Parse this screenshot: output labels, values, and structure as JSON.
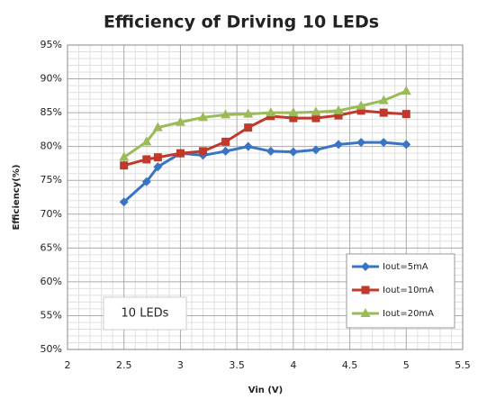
{
  "chart_data": {
    "type": "line",
    "title": "Efficiency of Driving 10 LEDs",
    "x_label": "Vin (V)",
    "y_label": "Efficiency(%)",
    "annotation": "10 LEDs",
    "x": [
      2.5,
      2.7,
      2.8,
      3.0,
      3.2,
      3.4,
      3.6,
      3.8,
      4.0,
      4.2,
      4.4,
      4.6,
      4.8,
      5.0
    ],
    "series": [
      {
        "name": "Iout=5mA",
        "color": "#3a74c4",
        "marker": "diamond",
        "values": [
          71.8,
          74.8,
          77,
          79,
          78.7,
          79.3,
          80,
          79.3,
          79.2,
          79.5,
          80.3,
          80.6,
          80.6,
          80.3
        ]
      },
      {
        "name": "Iout=10mA",
        "color": "#c0392b",
        "marker": "square",
        "values": [
          77.2,
          78.1,
          78.4,
          79,
          79.3,
          80.7,
          82.8,
          84.5,
          84.2,
          84.2,
          84.6,
          85.3,
          85,
          84.8
        ]
      },
      {
        "name": "Iout=20mA",
        "color": "#9bbb59",
        "marker": "triangle",
        "values": [
          78.4,
          80.7,
          82.8,
          83.6,
          84.3,
          84.7,
          84.8,
          85,
          85,
          85.1,
          85.3,
          86,
          86.8,
          88.2
        ]
      }
    ],
    "xlim": [
      2,
      5.5
    ],
    "xticks": [
      2,
      2.5,
      3,
      3.5,
      4,
      4.5,
      5,
      5.5
    ],
    "ylim": [
      50,
      95
    ],
    "yticks": [
      {
        "value": 50,
        "label": "50%"
      },
      {
        "value": 55,
        "label": "55%"
      },
      {
        "value": 60,
        "label": "60%"
      },
      {
        "value": 65,
        "label": "65%"
      },
      {
        "value": 70,
        "label": "70%"
      },
      {
        "value": 75,
        "label": "75%"
      },
      {
        "value": 80,
        "label": "80%"
      },
      {
        "value": 85,
        "label": "85%"
      },
      {
        "value": 90,
        "label": "90%"
      },
      {
        "value": 95,
        "label": "95%"
      }
    ],
    "grid": true,
    "legend": "lower right"
  }
}
